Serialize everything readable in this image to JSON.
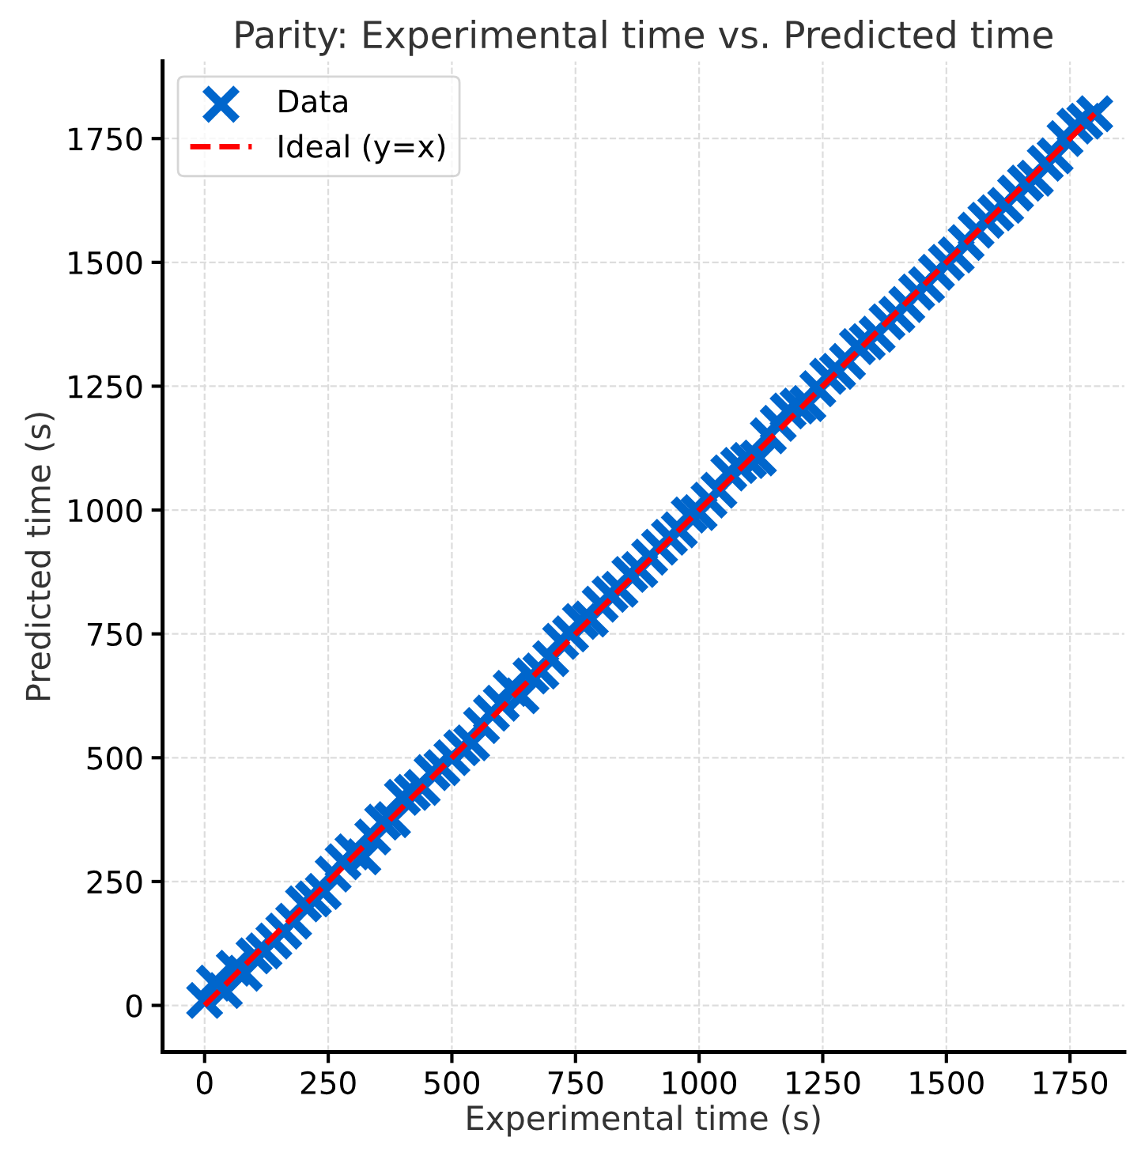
{
  "chart_data": {
    "type": "scatter",
    "title": "Parity: Experimental time vs. Predicted time",
    "xlabel": "Experimental time (s)",
    "ylabel": "Predicted time (s)",
    "series": [
      {
        "name": "Data",
        "color": "#0066cc",
        "marker": "cross",
        "x": [
          0,
          20,
          40,
          60,
          80,
          100,
          120,
          140,
          160,
          180,
          200,
          220,
          240,
          260,
          280,
          300,
          320,
          340,
          360,
          380,
          400,
          420,
          440,
          460,
          480,
          500,
          520,
          540,
          560,
          580,
          600,
          620,
          640,
          660,
          680,
          700,
          720,
          740,
          760,
          780,
          800,
          820,
          840,
          860,
          880,
          900,
          920,
          940,
          960,
          980,
          1000,
          1020,
          1040,
          1060,
          1080,
          1100,
          1120,
          1140,
          1160,
          1180,
          1200,
          1220,
          1240,
          1260,
          1280,
          1300,
          1320,
          1340,
          1360,
          1380,
          1400,
          1420,
          1440,
          1460,
          1480,
          1500,
          1520,
          1540,
          1560,
          1580,
          1600,
          1620,
          1640,
          1660,
          1680,
          1700,
          1720,
          1740,
          1760,
          1780,
          1800
        ],
        "values": [
          10,
          45,
          30,
          75,
          65,
          100,
          110,
          130,
          150,
          170,
          205,
          215,
          230,
          265,
          290,
          310,
          300,
          340,
          370,
          375,
          420,
          430,
          440,
          470,
          480,
          500,
          520,
          530,
          565,
          590,
          610,
          640,
          625,
          665,
          675,
          700,
          735,
          750,
          775,
          780,
          810,
          830,
          840,
          870,
          880,
          905,
          925,
          945,
          960,
          990,
          995,
          1020,
          1040,
          1075,
          1090,
          1100,
          1105,
          1150,
          1175,
          1200,
          1210,
          1215,
          1245,
          1270,
          1280,
          1300,
          1330,
          1340,
          1355,
          1380,
          1395,
          1415,
          1440,
          1455,
          1480,
          1500,
          1515,
          1540,
          1565,
          1585,
          1600,
          1615,
          1640,
          1660,
          1670,
          1700,
          1715,
          1750,
          1775,
          1785,
          1800
        ]
      },
      {
        "name": "Ideal (y=x)",
        "type": "line",
        "color": "#ff0000",
        "line_style": "dashed",
        "x": [
          0,
          1800
        ],
        "values": [
          0,
          1800
        ]
      }
    ],
    "xlim": [
      -85,
      1860
    ],
    "ylim": [
      -94,
      1906
    ],
    "xticks": [
      0,
      250,
      500,
      750,
      1000,
      1250,
      1500,
      1750
    ],
    "yticks": [
      0,
      250,
      500,
      750,
      1000,
      1250,
      1500,
      1750
    ],
    "grid": true,
    "legend": "top left"
  }
}
